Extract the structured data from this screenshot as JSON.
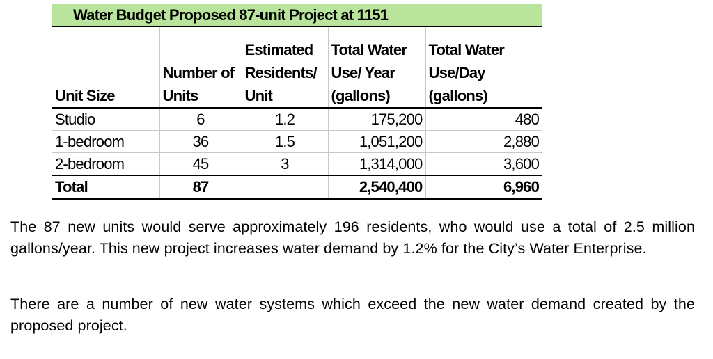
{
  "table": {
    "title": "Water Budget Proposed 87-unit  Project at 1151",
    "headers": [
      [
        "Unit Size"
      ],
      [
        "Number of",
        "Units"
      ],
      [
        "Estimated",
        "Residents/",
        "Unit"
      ],
      [
        "Total Water",
        "Use/ Year",
        "(gallons)"
      ],
      [
        "Total Water",
        "Use/Day",
        "(gallons)"
      ]
    ],
    "rows": [
      {
        "unit_size": "Studio",
        "units": "6",
        "residents_per_unit": "1.2",
        "use_per_year": "175,200",
        "use_per_day": "480"
      },
      {
        "unit_size": "1-bedroom",
        "units": "36",
        "residents_per_unit": "1.5",
        "use_per_year": "1,051,200",
        "use_per_day": "2,880"
      },
      {
        "unit_size": "2-bedroom",
        "units": "45",
        "residents_per_unit": "3",
        "use_per_year": "1,314,000",
        "use_per_day": "3,600"
      }
    ],
    "total": {
      "label": "Total",
      "units": "87",
      "residents_per_unit": "",
      "use_per_year": "2,540,400",
      "use_per_day": "6,960"
    }
  },
  "paragraphs": [
    "The 87 new units would serve approximately 196 residents, who would use a total of 2.5 million gallons/year. This new project increases water demand by 1.2% for the City’s Water Enterprise.",
    "There are a number of new water systems which exceed the new water demand created by the proposed project."
  ]
}
